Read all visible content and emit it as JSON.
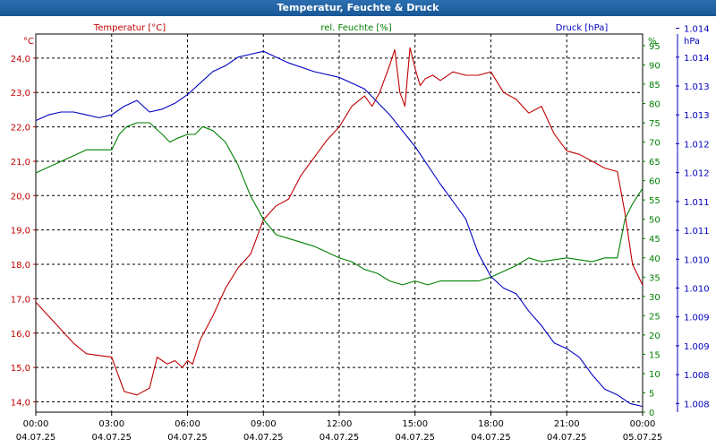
{
  "window": {
    "title": "Temperatur, Feuchte & Druck"
  },
  "chart_data": {
    "type": "line",
    "title": "Temperatur, Feuchte & Druck",
    "grid": true,
    "colors": {
      "temperature": "#c00000",
      "humidity": "#008000",
      "pressure": "#0000c0"
    },
    "x_ticks": [
      {
        "time": "00:00",
        "date": "04.07.25"
      },
      {
        "time": "03:00",
        "date": "04.07.25"
      },
      {
        "time": "06:00",
        "date": "04.07.25"
      },
      {
        "time": "09:00",
        "date": "04.07.25"
      },
      {
        "time": "12:00",
        "date": "04.07.25"
      },
      {
        "time": "15:00",
        "date": "04.07.25"
      },
      {
        "time": "18:00",
        "date": "04.07.25"
      },
      {
        "time": "21:00",
        "date": "04.07.25"
      },
      {
        "time": "00:00",
        "date": "05.07.25"
      }
    ],
    "x_range_hours": [
      0,
      24
    ],
    "axes": {
      "temperature": {
        "label": "Temperatur [°C]",
        "unit": "°C",
        "range": [
          13.7,
          24.7
        ],
        "ticks": [
          "14,0",
          "15,0",
          "16,0",
          "17,0",
          "18,0",
          "19,0",
          "20,0",
          "21,0",
          "22,0",
          "23,0",
          "24,0"
        ]
      },
      "humidity": {
        "label": "rel. Feuchte [%]",
        "unit": "%",
        "range": [
          0,
          98
        ],
        "ticks": [
          "0",
          "5",
          "10",
          "15",
          "20",
          "25",
          "30",
          "35",
          "40",
          "45",
          "50",
          "55",
          "60",
          "65",
          "70",
          "75",
          "80",
          "85",
          "90",
          "95"
        ]
      },
      "pressure": {
        "label": "Druck [hPa]",
        "unit": "hPa",
        "range": [
          1007.85,
          1014.4
        ],
        "ticks": [
          "1.008",
          "1.008",
          "1.009",
          "1.009",
          "1.010",
          "1.010",
          "1.011",
          "1.011",
          "1.012",
          "1.012",
          "1.013",
          "1.013",
          "1.014",
          "1.014"
        ]
      }
    },
    "series": [
      {
        "name": "Temperatur [°C]",
        "key": "temperature",
        "x": [
          0,
          0.5,
          1,
          1.5,
          2,
          2.5,
          3,
          3.25,
          3.5,
          4,
          4.5,
          4.8,
          5,
          5.2,
          5.5,
          5.8,
          6,
          6.2,
          6.5,
          7,
          7.5,
          8,
          8.5,
          9,
          9.5,
          10,
          10.5,
          11,
          11.5,
          12,
          12.5,
          13,
          13.3,
          13.6,
          14,
          14.2,
          14.4,
          14.6,
          14.8,
          15,
          15.2,
          15.4,
          15.7,
          16,
          16.5,
          17,
          17.5,
          18,
          18.5,
          19,
          19.5,
          20,
          20.5,
          21,
          21.5,
          22,
          22.5,
          23,
          23.3,
          23.6,
          24
        ],
        "y": [
          16.9,
          16.5,
          16.1,
          15.7,
          15.4,
          15.35,
          15.3,
          14.8,
          14.3,
          14.2,
          14.4,
          15.3,
          15.2,
          15.1,
          15.2,
          15.0,
          15.2,
          15.1,
          15.8,
          16.5,
          17.3,
          17.9,
          18.3,
          19.3,
          19.7,
          19.9,
          20.6,
          21.1,
          21.6,
          22.0,
          22.6,
          22.9,
          22.6,
          23.0,
          23.8,
          24.25,
          23.0,
          22.6,
          24.3,
          23.7,
          23.2,
          23.4,
          23.5,
          23.35,
          23.6,
          23.5,
          23.5,
          23.6,
          23.0,
          22.8,
          22.4,
          22.6,
          21.8,
          21.3,
          21.2,
          21.0,
          20.8,
          20.7,
          19.5,
          18.0,
          17.4
        ]
      },
      {
        "name": "rel. Feuchte [%]",
        "key": "humidity",
        "x": [
          0,
          1,
          2,
          3,
          3.3,
          3.6,
          4,
          4.5,
          5,
          5.3,
          5.6,
          6,
          6.3,
          6.6,
          7,
          7.5,
          8,
          8.5,
          9,
          9.5,
          10,
          11,
          12,
          12.5,
          13,
          13.5,
          14,
          14.5,
          15,
          15.5,
          16,
          17,
          17.5,
          18,
          19,
          19.5,
          20,
          21,
          22,
          22.5,
          23,
          23.3,
          23.6,
          24
        ],
        "y": [
          62,
          65,
          68,
          68,
          72,
          74,
          75,
          75,
          72,
          70,
          71,
          72,
          72,
          74,
          73,
          70,
          64,
          56,
          50,
          46,
          45,
          43,
          40,
          39,
          37,
          36,
          34,
          33,
          34,
          33,
          34,
          34,
          34,
          35,
          38,
          40,
          39,
          40,
          39,
          40,
          40,
          50,
          54,
          58
        ]
      },
      {
        "name": "Druck [hPa]",
        "key": "pressure",
        "x": [
          0,
          0.5,
          1,
          1.5,
          2,
          2.5,
          3,
          3.5,
          4,
          4.5,
          5,
          5.5,
          6,
          6.5,
          7,
          7.5,
          8,
          8.5,
          9,
          9.5,
          10,
          11,
          12,
          13,
          14,
          15,
          16,
          17,
          17.5,
          18,
          18.5,
          19,
          19.5,
          20,
          20.5,
          21,
          21.5,
          22,
          22.5,
          23,
          23.5,
          24
        ],
        "y": [
          1012.9,
          1013.0,
          1013.05,
          1013.05,
          1013.0,
          1012.95,
          1013.0,
          1013.15,
          1013.25,
          1013.05,
          1013.1,
          1013.2,
          1013.35,
          1013.55,
          1013.75,
          1013.85,
          1014.0,
          1014.05,
          1014.1,
          1014.0,
          1013.9,
          1013.75,
          1013.65,
          1013.45,
          1013.0,
          1012.45,
          1011.8,
          1011.2,
          1010.6,
          1010.2,
          1010.0,
          1009.9,
          1009.6,
          1009.35,
          1009.05,
          1008.95,
          1008.8,
          1008.5,
          1008.25,
          1008.15,
          1008.0,
          1007.95
        ]
      }
    ]
  }
}
